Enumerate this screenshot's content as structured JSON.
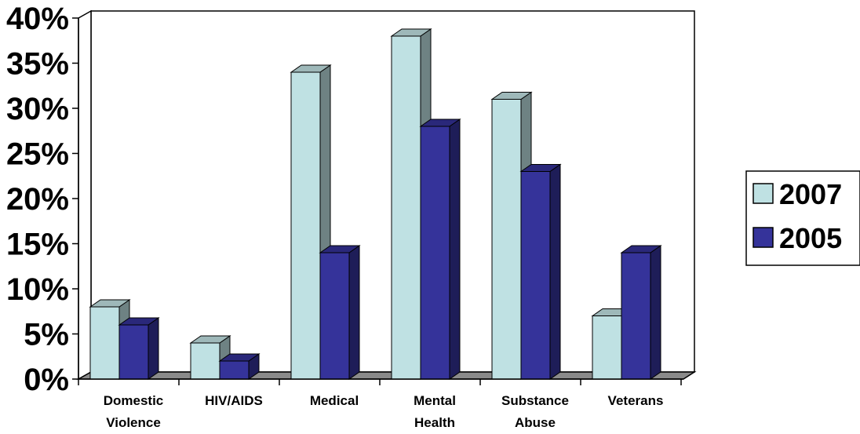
{
  "chart_data": {
    "type": "bar",
    "categories": [
      [
        "Domestic",
        "Violence"
      ],
      [
        "HIV/AIDS"
      ],
      [
        "Medical"
      ],
      [
        "Mental",
        "Health"
      ],
      [
        "Substance",
        "Abuse"
      ],
      [
        "Veterans"
      ]
    ],
    "series": [
      {
        "name": "2007",
        "values": [
          8,
          4,
          34,
          38,
          31,
          7
        ]
      },
      {
        "name": "2005",
        "values": [
          6,
          2,
          14,
          28,
          23,
          14
        ]
      }
    ],
    "ylim": [
      0,
      40
    ],
    "yticks": [
      "0%",
      "5%",
      "10%",
      "15%",
      "20%",
      "25%",
      "30%",
      "35%",
      "40%"
    ],
    "grid": true,
    "legend": "right",
    "colors": {
      "s2007_front": "#bfe1e3",
      "s2007_side": "#6e8283",
      "s2007_top": "#9eb8b9",
      "s2005_front": "#35339a",
      "s2005_side": "#1e1d58",
      "s2005_top": "#2a287a",
      "floor": "#8a8a8a"
    }
  }
}
